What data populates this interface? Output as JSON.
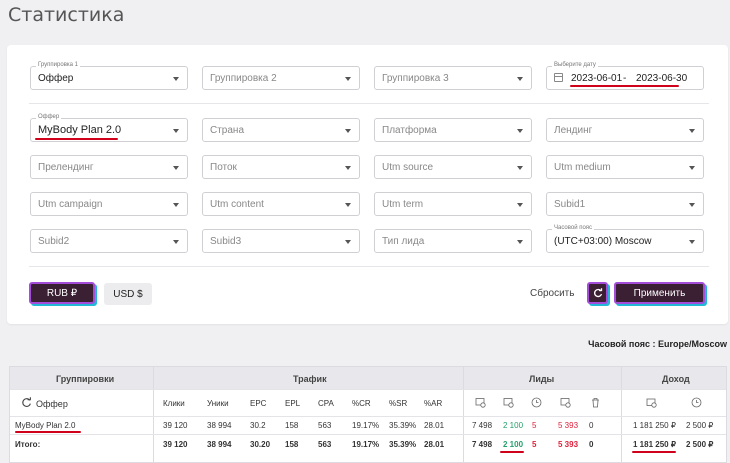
{
  "page": {
    "title": "Статистика"
  },
  "filters": {
    "row1": {
      "group1": {
        "label": "Группировка 1",
        "value": "Оффер"
      },
      "group2": {
        "placeholder": "Группировка 2"
      },
      "group3": {
        "placeholder": "Группировка 3"
      },
      "date": {
        "label": "Выберите дату",
        "from": "2023-06-01",
        "sep": "-",
        "to": "2023-06-30"
      }
    },
    "offer": {
      "label": "Оффер",
      "value": "MyBody Plan 2.0"
    },
    "country": "Страна",
    "platform": "Платформа",
    "landing": "Лендинг",
    "prelanding": "Прелендинг",
    "flow": "Поток",
    "utm_source": "Utm source",
    "utm_medium": "Utm medium",
    "utm_campaign": "Utm campaign",
    "utm_content": "Utm content",
    "utm_term": "Utm term",
    "subid1": "Subid1",
    "subid2": "Subid2",
    "subid3": "Subid3",
    "lead_type": "Тип лида",
    "timezone": {
      "label": "Часовой пояс",
      "value": "(UTC+03:00) Moscow"
    }
  },
  "actions": {
    "rub": "RUB ₽",
    "usd": "USD $",
    "reset": "Сбросить",
    "apply": "Применить"
  },
  "timezone_note": "Часовой пояс : Europe/Moscow",
  "table": {
    "groups": {
      "grouping": "Группировки",
      "traffic": "Трафик",
      "leads": "Лиды",
      "income": "Доход"
    },
    "grouping_col": "Оффер",
    "traffic_cols": [
      "Клики",
      "Уники",
      "EPC",
      "EPL",
      "CPA",
      "%CR",
      "%SR",
      "%AR"
    ],
    "rows": [
      {
        "name": "MyBody Plan 2.0",
        "traffic": [
          "39 120",
          "38 994",
          "30.2",
          "158",
          "563",
          "19.17%",
          "35.39%",
          "28.01"
        ],
        "leads": [
          "7 498",
          "2 100",
          "5",
          "5 393",
          "0"
        ],
        "income": [
          "1 181 250 ₽",
          "2 500 ₽"
        ]
      }
    ],
    "total": {
      "name": "Итого:",
      "traffic": [
        "39 120",
        "38 994",
        "30.20",
        "158",
        "563",
        "19.17%",
        "35.39%",
        "28.01"
      ],
      "leads": [
        "7 498",
        "2 100",
        "5",
        "5 393",
        "0"
      ],
      "income": [
        "1 181 250 ₽",
        "2 500 ₽"
      ]
    }
  },
  "colors": {
    "accent": "#3b1f33",
    "accent_border": "#a44dd8",
    "accent_shadow": "#22b8d6",
    "approved": "#23a06a",
    "rejected": "#e0203b",
    "highlight": "#d0021b"
  },
  "icons": [
    "calendar-icon",
    "chevron-down-icon",
    "refresh-icon",
    "lead-total-icon",
    "lead-approved-icon",
    "clock-icon",
    "lead-rejected-icon",
    "trash-icon",
    "wallet-icon"
  ]
}
